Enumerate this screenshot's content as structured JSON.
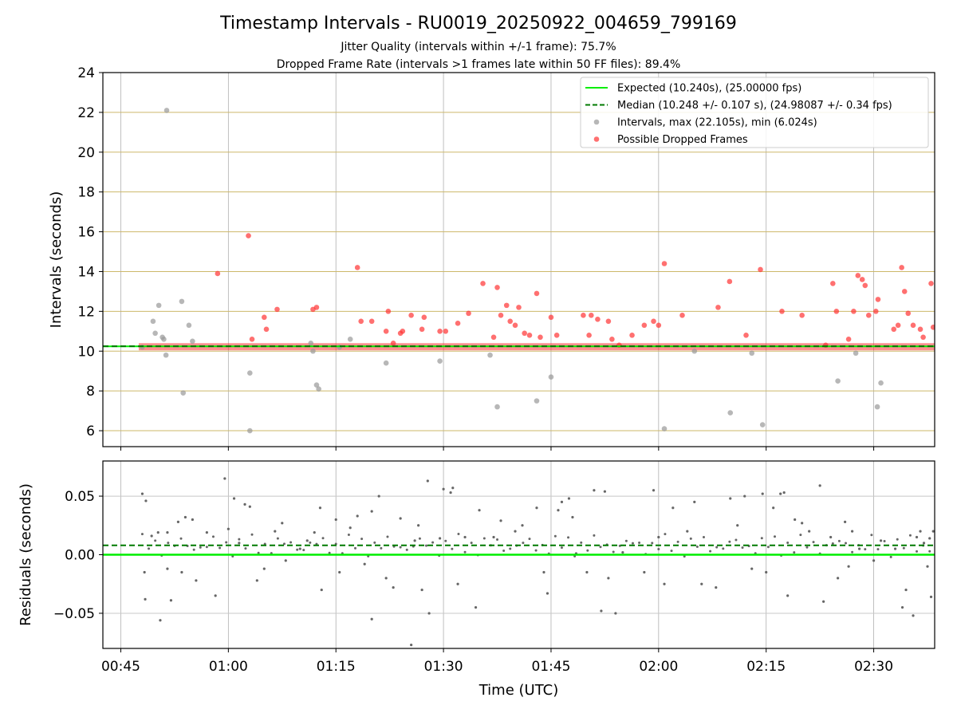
{
  "chart_data": [
    {
      "type": "scatter",
      "title": "Timestamp Intervals - RU0019_20250922_004659_799169",
      "subtitle_lines": [
        "Jitter Quality (intervals within +/-1 frame): 75.7%",
        "Dropped Frame Rate (intervals >1 frames late within 50 FF files): 89.4%"
      ],
      "xlabel": "",
      "ylabel": "Intervals (seconds)",
      "xlim_minutes": [
        42.5,
        158.5
      ],
      "ylim": [
        5.2,
        24
      ],
      "yticks": [
        6,
        8,
        10,
        12,
        14,
        16,
        18,
        20,
        22,
        24
      ],
      "ytick_labels": [
        "6",
        "8",
        "10",
        "12",
        "14",
        "16",
        "18",
        "20",
        "22",
        "24"
      ],
      "grid": true,
      "legend_position": "top-right",
      "legend": [
        {
          "label": "Expected (10.240s), (25.00000 fps)",
          "color": "#00ee00",
          "style": "solid-line"
        },
        {
          "label": "Median (10.248 +/- 0.107 s), (24.98087 +/- 0.34 fps)",
          "color": "#007a00",
          "style": "dashed-line"
        },
        {
          "label": "Intervals, max (22.105s), min (6.024s)",
          "color": "#999999",
          "style": "marker"
        },
        {
          "label": "Possible Dropped Frames",
          "color": "#ff3333",
          "style": "marker"
        }
      ],
      "expected_interval": 10.24,
      "median_interval": 10.248,
      "baseline_range_minutes": [
        47.5,
        158.5
      ],
      "series": [
        {
          "name": "Intervals",
          "color": "#999999",
          "points": [
            [
              48,
              10.2
            ],
            [
              49.5,
              11.5
            ],
            [
              49.8,
              10.9
            ],
            [
              50.3,
              12.3
            ],
            [
              50.8,
              10.7
            ],
            [
              51,
              10.6
            ],
            [
              51.3,
              9.8
            ],
            [
              51.4,
              22.1
            ],
            [
              53.5,
              12.5
            ],
            [
              53.7,
              7.9
            ],
            [
              54.5,
              11.3
            ],
            [
              55,
              10.5
            ],
            [
              63,
              6.0
            ],
            [
              63,
              8.9
            ],
            [
              71.5,
              10.4
            ],
            [
              71.8,
              10.0
            ],
            [
              72.3,
              8.3
            ],
            [
              72.6,
              8.1
            ],
            [
              75.5,
              10.2
            ],
            [
              77,
              10.6
            ],
            [
              82,
              9.4
            ],
            [
              89.5,
              9.5
            ],
            [
              96.5,
              9.8
            ],
            [
              97.5,
              7.2
            ],
            [
              103,
              7.5
            ],
            [
              105,
              8.7
            ],
            [
              120.8,
              6.1
            ],
            [
              125,
              10.0
            ],
            [
              130,
              6.9
            ],
            [
              133,
              9.9
            ],
            [
              134.5,
              6.3
            ],
            [
              145,
              8.5
            ],
            [
              147.5,
              9.9
            ],
            [
              150.5,
              7.2
            ],
            [
              151,
              8.4
            ]
          ]
        },
        {
          "name": "Possible Dropped Frames",
          "color": "#ff3333",
          "points": [
            [
              58.5,
              13.9
            ],
            [
              62.8,
              15.8
            ],
            [
              63.3,
              10.6
            ],
            [
              65,
              11.7
            ],
            [
              65.3,
              11.1
            ],
            [
              66.8,
              12.1
            ],
            [
              71.8,
              12.1
            ],
            [
              72.3,
              12.2
            ],
            [
              78,
              14.2
            ],
            [
              78.5,
              11.5
            ],
            [
              80,
              11.5
            ],
            [
              82,
              11.0
            ],
            [
              82.3,
              12.0
            ],
            [
              83,
              10.4
            ],
            [
              84,
              10.9
            ],
            [
              84.3,
              11.0
            ],
            [
              85.5,
              11.8
            ],
            [
              87,
              11.1
            ],
            [
              87.3,
              11.7
            ],
            [
              89.5,
              11.0
            ],
            [
              90.3,
              11.0
            ],
            [
              92,
              11.4
            ],
            [
              93.5,
              11.9
            ],
            [
              95.5,
              13.4
            ],
            [
              97,
              10.7
            ],
            [
              97.5,
              13.2
            ],
            [
              98,
              11.8
            ],
            [
              98.8,
              12.3
            ],
            [
              99.3,
              11.5
            ],
            [
              100,
              11.3
            ],
            [
              100.5,
              12.2
            ],
            [
              101.3,
              10.9
            ],
            [
              102,
              10.8
            ],
            [
              103,
              12.9
            ],
            [
              103.5,
              10.7
            ],
            [
              105,
              11.7
            ],
            [
              105.8,
              10.8
            ],
            [
              109.5,
              11.8
            ],
            [
              110.3,
              10.8
            ],
            [
              110.6,
              11.8
            ],
            [
              111.5,
              11.6
            ],
            [
              113,
              11.5
            ],
            [
              113.5,
              10.6
            ],
            [
              114.5,
              10.3
            ],
            [
              116.3,
              10.8
            ],
            [
              118,
              11.3
            ],
            [
              119.3,
              11.5
            ],
            [
              120,
              11.3
            ],
            [
              120.8,
              14.4
            ],
            [
              123.3,
              11.8
            ],
            [
              128.3,
              12.2
            ],
            [
              129.9,
              13.5
            ],
            [
              132.2,
              10.8
            ],
            [
              134.2,
              14.1
            ],
            [
              137.2,
              12.0
            ],
            [
              140,
              11.8
            ],
            [
              143.3,
              10.3
            ],
            [
              144.3,
              13.4
            ],
            [
              144.8,
              12.0
            ],
            [
              146.5,
              10.6
            ],
            [
              147.2,
              12.0
            ],
            [
              147.8,
              13.8
            ],
            [
              148.4,
              13.6
            ],
            [
              148.8,
              13.3
            ],
            [
              149.3,
              11.8
            ],
            [
              150.3,
              12.0
            ],
            [
              150.6,
              12.6
            ],
            [
              152.8,
              11.1
            ],
            [
              153.4,
              11.3
            ],
            [
              153.9,
              14.2
            ],
            [
              154.3,
              13.0
            ],
            [
              154.8,
              11.9
            ],
            [
              155.5,
              11.3
            ],
            [
              156.5,
              11.1
            ],
            [
              156.9,
              10.7
            ],
            [
              158,
              13.4
            ],
            [
              158.3,
              11.2
            ]
          ]
        }
      ]
    },
    {
      "type": "scatter",
      "title": "",
      "xlabel": "Time (UTC)",
      "ylabel": "Residuals (seconds)",
      "xlim_minutes": [
        42.5,
        158.5
      ],
      "ylim": [
        -0.08,
        0.08
      ],
      "yticks": [
        -0.05,
        0,
        0.05
      ],
      "ytick_labels": [
        "−0.05",
        "0.00",
        "0.05"
      ],
      "xticks_minutes": [
        45,
        60,
        75,
        90,
        105,
        120,
        135,
        150
      ],
      "xtick_labels": [
        "00:45",
        "01:00",
        "01:15",
        "01:30",
        "01:45",
        "02:00",
        "02:15",
        "02:30"
      ],
      "grid": true,
      "expected_residual": 0.0,
      "median_residual": 0.008,
      "series": [
        {
          "name": "Residuals",
          "color": "#666666",
          "points": [
            [
              48,
              0.052
            ],
            [
              48.5,
              0.046
            ],
            [
              48.3,
              -0.015
            ],
            [
              48.4,
              -0.038
            ],
            [
              49.3,
              0.016
            ],
            [
              50.2,
              0.019
            ],
            [
              50.5,
              -0.056
            ],
            [
              51.5,
              0.019
            ],
            [
              51.5,
              -0.012
            ],
            [
              52,
              -0.039
            ],
            [
              53,
              0.028
            ],
            [
              53.5,
              -0.015
            ],
            [
              54,
              0.032
            ],
            [
              55,
              0.03
            ],
            [
              55.5,
              -0.022
            ],
            [
              57,
              0.019
            ],
            [
              58.2,
              -0.035
            ],
            [
              59.5,
              0.065
            ],
            [
              60,
              0.022
            ],
            [
              60.8,
              0.048
            ],
            [
              61.5,
              0.01
            ],
            [
              62.3,
              0.043
            ],
            [
              63,
              0.041
            ],
            [
              64,
              -0.022
            ],
            [
              65,
              -0.012
            ],
            [
              66.5,
              0.02
            ],
            [
              67.5,
              0.027
            ],
            [
              68,
              -0.005
            ],
            [
              70,
              0.005
            ],
            [
              71,
              0.012
            ],
            [
              72,
              0.019
            ],
            [
              72.8,
              0.04
            ],
            [
              73,
              -0.03
            ],
            [
              75,
              0.03
            ],
            [
              75.5,
              -0.015
            ],
            [
              77,
              0.023
            ],
            [
              78,
              0.033
            ],
            [
              79,
              -0.008
            ],
            [
              80,
              -0.055
            ],
            [
              80,
              0.037
            ],
            [
              81,
              0.05
            ],
            [
              82,
              -0.02
            ],
            [
              83,
              -0.028
            ],
            [
              84,
              0.031
            ],
            [
              85.5,
              -0.077
            ],
            [
              86,
              0.012
            ],
            [
              86.5,
              0.025
            ],
            [
              87,
              -0.03
            ],
            [
              87.8,
              0.063
            ],
            [
              88,
              -0.05
            ],
            [
              89.5,
              0.014
            ],
            [
              90,
              0.056
            ],
            [
              91,
              0.053
            ],
            [
              91.3,
              0.057
            ],
            [
              92,
              -0.025
            ],
            [
              93,
              0.015
            ],
            [
              94.5,
              -0.045
            ],
            [
              95,
              0.038
            ],
            [
              97,
              0.015
            ],
            [
              98,
              0.029
            ],
            [
              100,
              0.02
            ],
            [
              101,
              0.025
            ],
            [
              103,
              0.04
            ],
            [
              104,
              -0.015
            ],
            [
              104.5,
              -0.033
            ],
            [
              106,
              0.038
            ],
            [
              106.5,
              0.045
            ],
            [
              107.5,
              0.048
            ],
            [
              108,
              0.032
            ],
            [
              108.5,
              0.001
            ],
            [
              110,
              -0.015
            ],
            [
              111,
              0.055
            ],
            [
              112,
              -0.048
            ],
            [
              112.5,
              0.054
            ],
            [
              113,
              -0.02
            ],
            [
              114,
              -0.05
            ],
            [
              115,
              0.002
            ],
            [
              118,
              -0.015
            ],
            [
              119.3,
              0.055
            ],
            [
              120,
              0.015
            ],
            [
              120.8,
              -0.025
            ],
            [
              122,
              0.04
            ],
            [
              124,
              0.02
            ],
            [
              125,
              0.045
            ],
            [
              126,
              -0.025
            ],
            [
              128,
              -0.028
            ],
            [
              130,
              0.048
            ],
            [
              131,
              0.025
            ],
            [
              132,
              0.05
            ],
            [
              133,
              -0.012
            ],
            [
              134.5,
              0.052
            ],
            [
              135,
              -0.015
            ],
            [
              136,
              0.04
            ],
            [
              137,
              0.052
            ],
            [
              137.5,
              0.053
            ],
            [
              138,
              -0.035
            ],
            [
              139,
              0.03
            ],
            [
              140,
              0.027
            ],
            [
              141,
              0.02
            ],
            [
              142.5,
              0.059
            ],
            [
              143,
              -0.04
            ],
            [
              144,
              0.015
            ],
            [
              145,
              -0.02
            ],
            [
              146,
              0.028
            ],
            [
              146.5,
              -0.01
            ],
            [
              147,
              0.02
            ],
            [
              148,
              0.005
            ],
            [
              150,
              -0.005
            ],
            [
              151,
              0.012
            ],
            [
              153,
              0.005
            ],
            [
              154,
              -0.045
            ],
            [
              154.5,
              -0.03
            ],
            [
              155.5,
              -0.052
            ],
            [
              156,
              0.015
            ],
            [
              156.5,
              0.02
            ],
            [
              157,
              0.01
            ],
            [
              157.5,
              -0.01
            ],
            [
              158,
              -0.036
            ],
            [
              158.3,
              0.02
            ],
            [
              157.8,
              0.014
            ]
          ]
        }
      ]
    }
  ]
}
